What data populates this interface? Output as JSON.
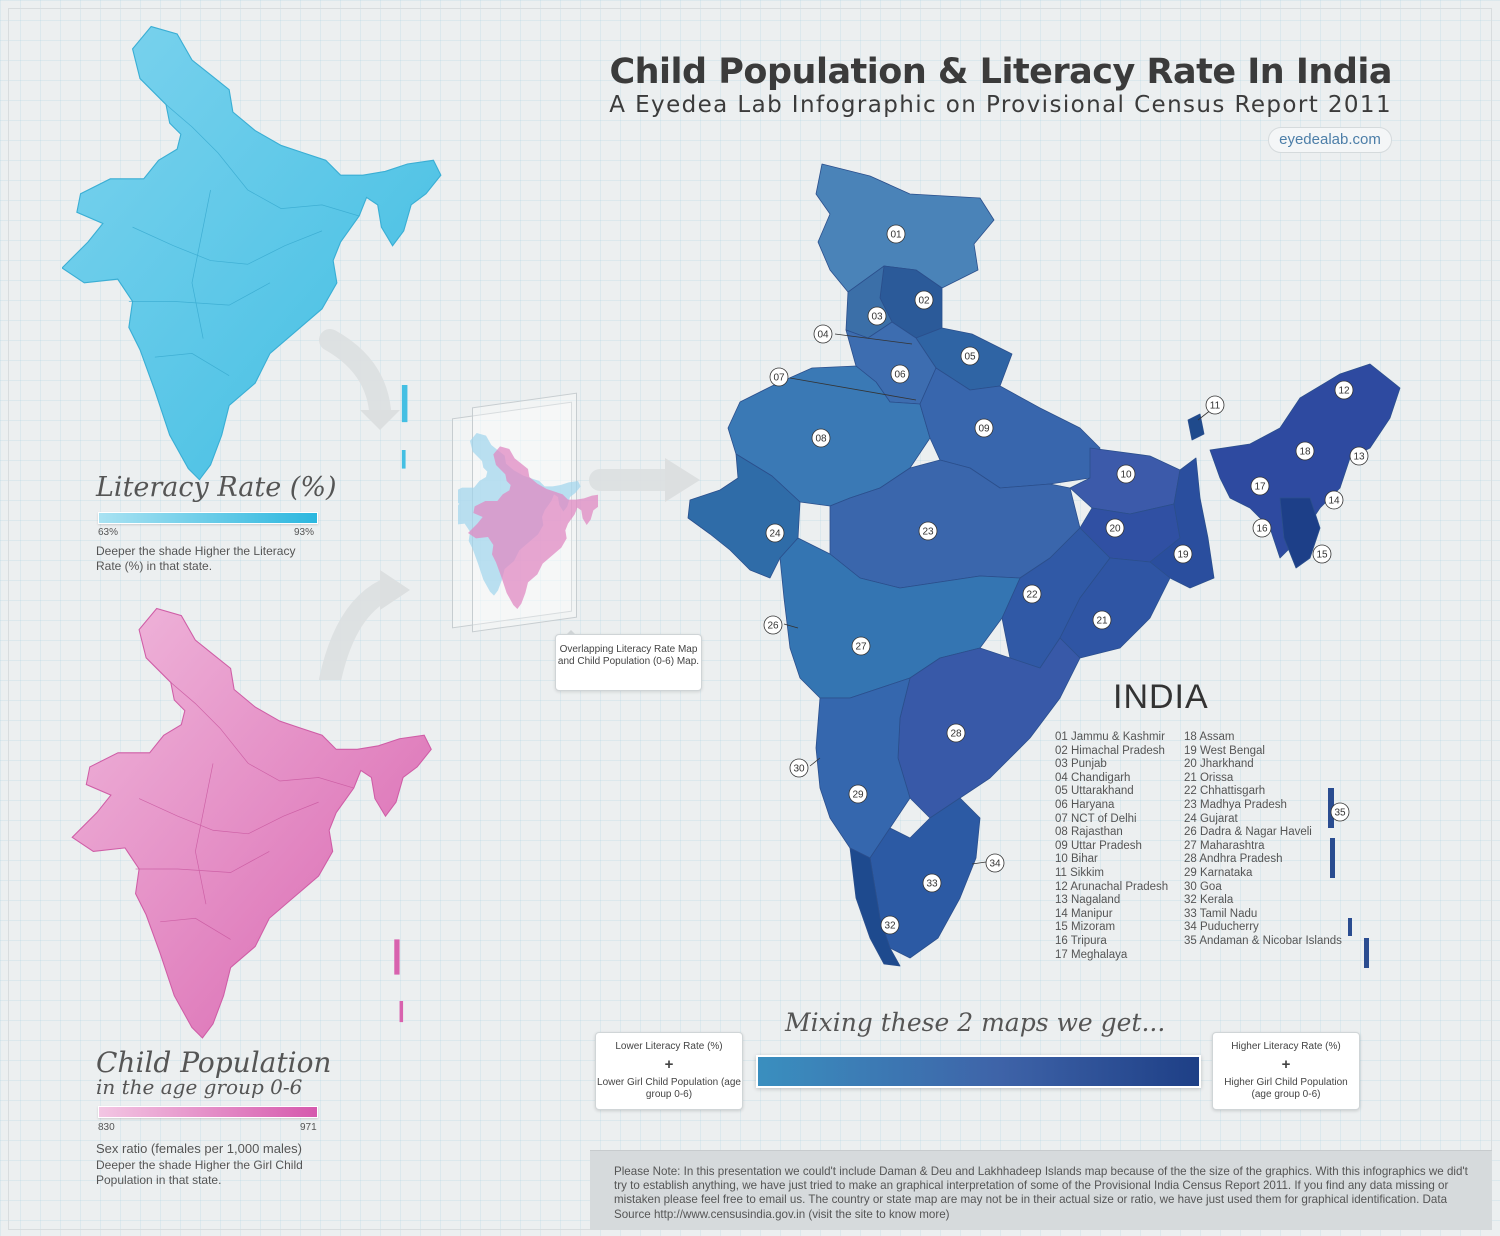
{
  "header": {
    "title": "Child Population & Literacy Rate In India",
    "subtitle": "A Eyedea Lab Infographic on Provisional Census Report 2011",
    "site": "eyedealab.com"
  },
  "literacy_legend": {
    "title": "Literacy Rate (%)",
    "min": "63%",
    "max": "93%",
    "note": "Deeper the shade Higher the Literacy Rate (%) in that state.",
    "color_low": "#a9e2f2",
    "color_high": "#2bb7df"
  },
  "child_legend": {
    "title_line1": "Child Population",
    "title_line2": "in the age group 0-6",
    "min": "830",
    "max": "971",
    "sub": "Sex ratio (females per 1,000 males)",
    "note": "Deeper the shade Higher the Girl Child Population in that state.",
    "color_low": "#f3c6e3",
    "color_high": "#d659ad"
  },
  "overlap_callout": "Overlapping Literacy Rate Map and Child Population (0-6) Map.",
  "map": {
    "country_label": "INDIA",
    "markers": [
      "01",
      "02",
      "03",
      "04",
      "05",
      "06",
      "07",
      "08",
      "09",
      "10",
      "11",
      "12",
      "13",
      "14",
      "15",
      "16",
      "17",
      "18",
      "19",
      "20",
      "21",
      "22",
      "23",
      "24",
      "26",
      "27",
      "28",
      "29",
      "30",
      "32",
      "33",
      "34",
      "35"
    ],
    "states_col1": [
      "01 Jammu & Kashmir",
      "02 Himachal Pradesh",
      "03 Punjab",
      "04 Chandigarh",
      "05 Uttarakhand",
      "06 Haryana",
      "07 NCT of Delhi",
      "08 Rajasthan",
      "09 Uttar Pradesh",
      "10 Bihar",
      "11 Sikkim",
      "12 Arunachal Pradesh",
      "13 Nagaland",
      "14 Manipur",
      "15 Mizoram",
      "16 Tripura",
      "17 Meghalaya"
    ],
    "states_col2": [
      "18 Assam",
      "19 West Bengal",
      "20 Jharkhand",
      "21 Orissa",
      "22 Chhattisgarh",
      "23 Madhya Pradesh",
      "24 Gujarat",
      "26 Dadra & Nagar Haveli",
      "27 Maharashtra",
      "28 Andhra Pradesh",
      "29 Karnataka",
      "30 Goa",
      "32 Kerala",
      "33 Tamil Nadu",
      "34 Puducherry",
      "35 Andaman & Nicobar Islands"
    ]
  },
  "mix": {
    "title": "Mixing these 2 maps we get...",
    "plus": "+",
    "low_line1": "Lower Literacy Rate (%)",
    "low_line2": "Lower Girl Child Population (age group 0-6)",
    "high_line1": "Higher Literacy Rate (%)",
    "high_line2": "Higher Girl Child Population (age group 0-6)",
    "color_low": "#3a8fbf",
    "color_high": "#1e3f86"
  },
  "note": "Please Note: In this presentation we could't include Daman & Deu and Lakhhadeep Islands map because of the the size of the graphics. With this infographics we did't try to establish anything, we have just tried to make an graphical interpretation of some of the Provisional India Census Report 2011. If you find any data missing or mistaken please feel free to email us. The country or state map are may not be in their actual size or ratio, we have just used them for graphical identification. Data Source http://www.censusindia.gov.in (visit the site to know more)"
}
